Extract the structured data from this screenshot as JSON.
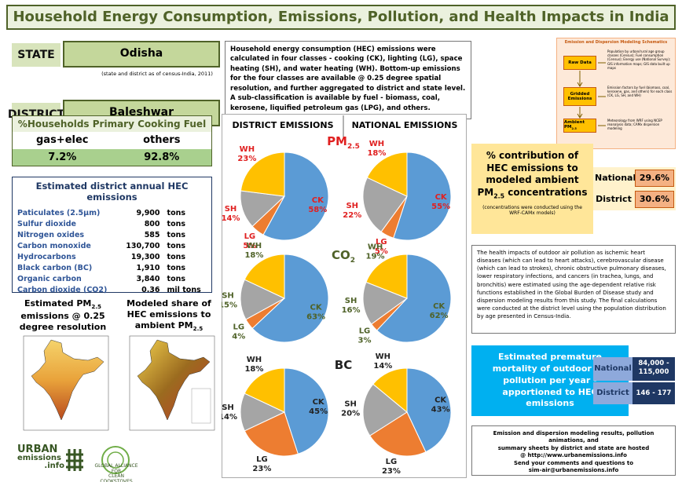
{
  "header": {
    "title": "Household Energy Consumption, Emissions, Pollution, and Health Impacts in India"
  },
  "location": {
    "state_label": "STATE",
    "state": "Odisha",
    "note": "(state and district as of census-India, 2011)",
    "district_label": "DISTRICT",
    "district": "Baleshwar"
  },
  "description": "Household energy consumption (HEC) emissions were calculated in four classes - cooking (CK), lighting (LG), space heating (SH), and water heating (WH). Bottom-up emissions for the four classes  are available @ 0.25 degree spatial resolution, and further aggregated to district and state level. A sub-classification is available by fuel - biomass, coal, kerosene, liquified petroleum gas (LPG), and others.",
  "schematic": {
    "title": "Emission and Dispersion Modeling Schematics",
    "boxes": [
      {
        "text": "Raw Data"
      },
      {
        "text": "Gridded Emissions"
      },
      {
        "text": "Ambient PM",
        "sub": "2.5"
      }
    ],
    "notes": [
      "Population by urban/rural age group classes (Census); Fuel consumption (Census); Energy use (National Survey); GIS information maps; GIS data built up maps",
      "Emission factors by fuel (biomass, coal, kerosene, gas, and others) for each class (CK, LG, SH, and WH)",
      "Meteorology from WRF using NCEP reanalysis data; CAMx dispersion modeling"
    ]
  },
  "cooking_fuel": {
    "title": "%Households Primary Cooking Fuel",
    "headers": [
      "gas+elec",
      "others"
    ],
    "values": [
      "7.2%",
      "92.8%"
    ]
  },
  "emissions": {
    "title": "Estimated district annual HEC emissions",
    "rows": [
      [
        "Paticulates (2.5μm)",
        "9,900",
        "tons"
      ],
      [
        "Sulfur dioxide",
        "800",
        "tons"
      ],
      [
        "Nitrogen oxides",
        "585",
        "tons"
      ],
      [
        "Carbon monoxide",
        "130,700",
        "tons"
      ],
      [
        "Hydrocarbons",
        "19,300",
        "tons"
      ],
      [
        "Black carbon (BC)",
        "1,910",
        "tons"
      ],
      [
        "Organic carbon",
        "3,840",
        "tons"
      ],
      [
        "Carbon dioxide (CO2)",
        "0.36",
        "mil tons"
      ]
    ]
  },
  "maps": [
    {
      "text": "Estimated PM",
      "sub": "2.5",
      "tail": "emissions @ 0.25 degree resolution"
    },
    {
      "text": "Modeled share of HEC emissions to ambient PM",
      "sub": "2.5"
    }
  ],
  "logos": {
    "urban": [
      "URBAN",
      "emissions",
      ".info"
    ],
    "gacc": [
      "GLOBAL ALLIANCE FOR",
      "CLEAN COOKSTOVES"
    ]
  },
  "pie_panel": {
    "columns": [
      "DISTRICT EMISSIONS",
      "NATIONAL EMISSIONS"
    ],
    "rows": [
      {
        "text": "PM",
        "sub": "2.5"
      },
      {
        "text": "CO",
        "sub": "2"
      },
      {
        "text": "BC"
      }
    ]
  },
  "chart_data": [
    {
      "type": "pie",
      "categories": [
        "CK",
        "LG",
        "SH",
        "WH"
      ],
      "values": [
        58,
        5,
        14,
        23
      ],
      "value_labels": [
        "58%",
        "5%",
        "14%",
        "23%"
      ],
      "colors": [
        "#5b9bd5",
        "#ed7d31",
        "#a5a5a5",
        "#ffc000"
      ],
      "label_color": "#e02020"
    },
    {
      "type": "pie",
      "categories": [
        "CK",
        "LG",
        "SH",
        "WH"
      ],
      "values": [
        55,
        5,
        22,
        18
      ],
      "value_labels": [
        "55%",
        "5%",
        "22%",
        "18%"
      ],
      "colors": [
        "#5b9bd5",
        "#ed7d31",
        "#a5a5a5",
        "#ffc000"
      ],
      "label_color": "#e02020"
    },
    {
      "type": "pie",
      "categories": [
        "CK",
        "LG",
        "SH",
        "WH"
      ],
      "values": [
        63,
        4,
        15,
        18
      ],
      "value_labels": [
        "63%",
        "4%",
        "15%",
        "18%"
      ],
      "colors": [
        "#5b9bd5",
        "#ed7d31",
        "#a5a5a5",
        "#ffc000"
      ],
      "label_color": "#4f6228"
    },
    {
      "type": "pie",
      "categories": [
        "CK",
        "LG",
        "SH",
        "WH"
      ],
      "values": [
        62,
        3,
        16,
        19
      ],
      "value_labels": [
        "62%",
        "3%",
        "16%",
        "19%"
      ],
      "colors": [
        "#5b9bd5",
        "#ed7d31",
        "#a5a5a5",
        "#ffc000"
      ],
      "label_color": "#4f6228"
    },
    {
      "type": "pie",
      "categories": [
        "CK",
        "LG",
        "SH",
        "WH"
      ],
      "values": [
        45,
        23,
        14,
        18
      ],
      "value_labels": [
        "45%",
        "23%",
        "14%",
        "18%"
      ],
      "colors": [
        "#5b9bd5",
        "#ed7d31",
        "#a5a5a5",
        "#ffc000"
      ],
      "label_color": "#222222"
    },
    {
      "type": "pie",
      "categories": [
        "CK",
        "LG",
        "SH",
        "WH"
      ],
      "values": [
        43,
        23,
        20,
        14
      ],
      "value_labels": [
        "43%",
        "23%",
        "20%",
        "14%"
      ],
      "colors": [
        "#5b9bd5",
        "#ed7d31",
        "#a5a5a5",
        "#ffc000"
      ],
      "label_color": "#222222"
    }
  ],
  "contribution": {
    "title": {
      "text": "% contribution of HEC emissions to modeled ambient PM",
      "sub": "2.5",
      "tail": "concentrations"
    },
    "note": "(concentrations were conducted using the WRF-CAMx models)",
    "rows": [
      [
        "National",
        "29.6%"
      ],
      [
        "District",
        "30.6%"
      ]
    ]
  },
  "health": "The health impacts of outdoor air pollution as ischemic heart diseases (which can lead to heart attacks), cerebrovascular disease (which can lead to strokes), chronic obstructive pulmonary diseases, lower respiratory infections, and cancers (in trachea, lungs, and bronchitis) were estimated using the age-dependent relative risk functions established in the Global Burden of Disease study and dispersion modeling results from this study. The final calculations were conducted at the district level using the population distribution by age presented in Census-India.",
  "mortality": {
    "title": "Estimated premature mortality of outdoor air pollution per year - apportioned to HEC emissions",
    "rows": [
      [
        "National",
        "84,000 - 115,000"
      ],
      [
        "District",
        "146 - 177"
      ]
    ]
  },
  "footer": [
    "Emission and dispersion modeling results, pollution animations, and",
    "summary sheets by district and state are hosted",
    "@ http://www.urbanemissions.info",
    "Send your comments and questions to",
    "sim-air@urbanemissions.info"
  ]
}
